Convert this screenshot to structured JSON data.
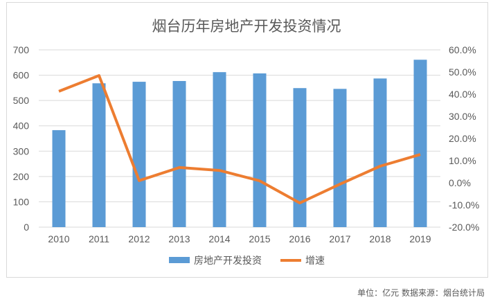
{
  "chart_data": {
    "type": "bar+line",
    "title": "烟台历年房地产开发投资情况",
    "categories": [
      "2010",
      "2011",
      "2012",
      "2013",
      "2014",
      "2015",
      "2016",
      "2017",
      "2018",
      "2019"
    ],
    "series": [
      {
        "name": "房地产开发投资",
        "type": "bar",
        "axis": "left",
        "color": "#5b9bd5",
        "values": [
          383,
          568,
          574,
          577,
          612,
          607,
          549,
          546,
          587,
          661
        ]
      },
      {
        "name": "增速",
        "type": "line",
        "axis": "right",
        "color": "#ed7d31",
        "values": [
          41.3,
          48.4,
          1.0,
          6.9,
          5.6,
          0.9,
          -9.1,
          -0.6,
          7.5,
          12.8
        ]
      }
    ],
    "ylim": [
      0,
      700
    ],
    "yticks": [
      "0",
      "100",
      "200",
      "300",
      "400",
      "500",
      "600",
      "700"
    ],
    "y2lim": [
      -20,
      60
    ],
    "y2ticks": [
      "-20.0%",
      "-10.0%",
      "0.0%",
      "10.0%",
      "20.0%",
      "30.0%",
      "40.0%",
      "50.0%",
      "60.0%"
    ],
    "grid": true,
    "legend": "bottom"
  },
  "source": "单位：亿元  数据来源：烟台统计局"
}
